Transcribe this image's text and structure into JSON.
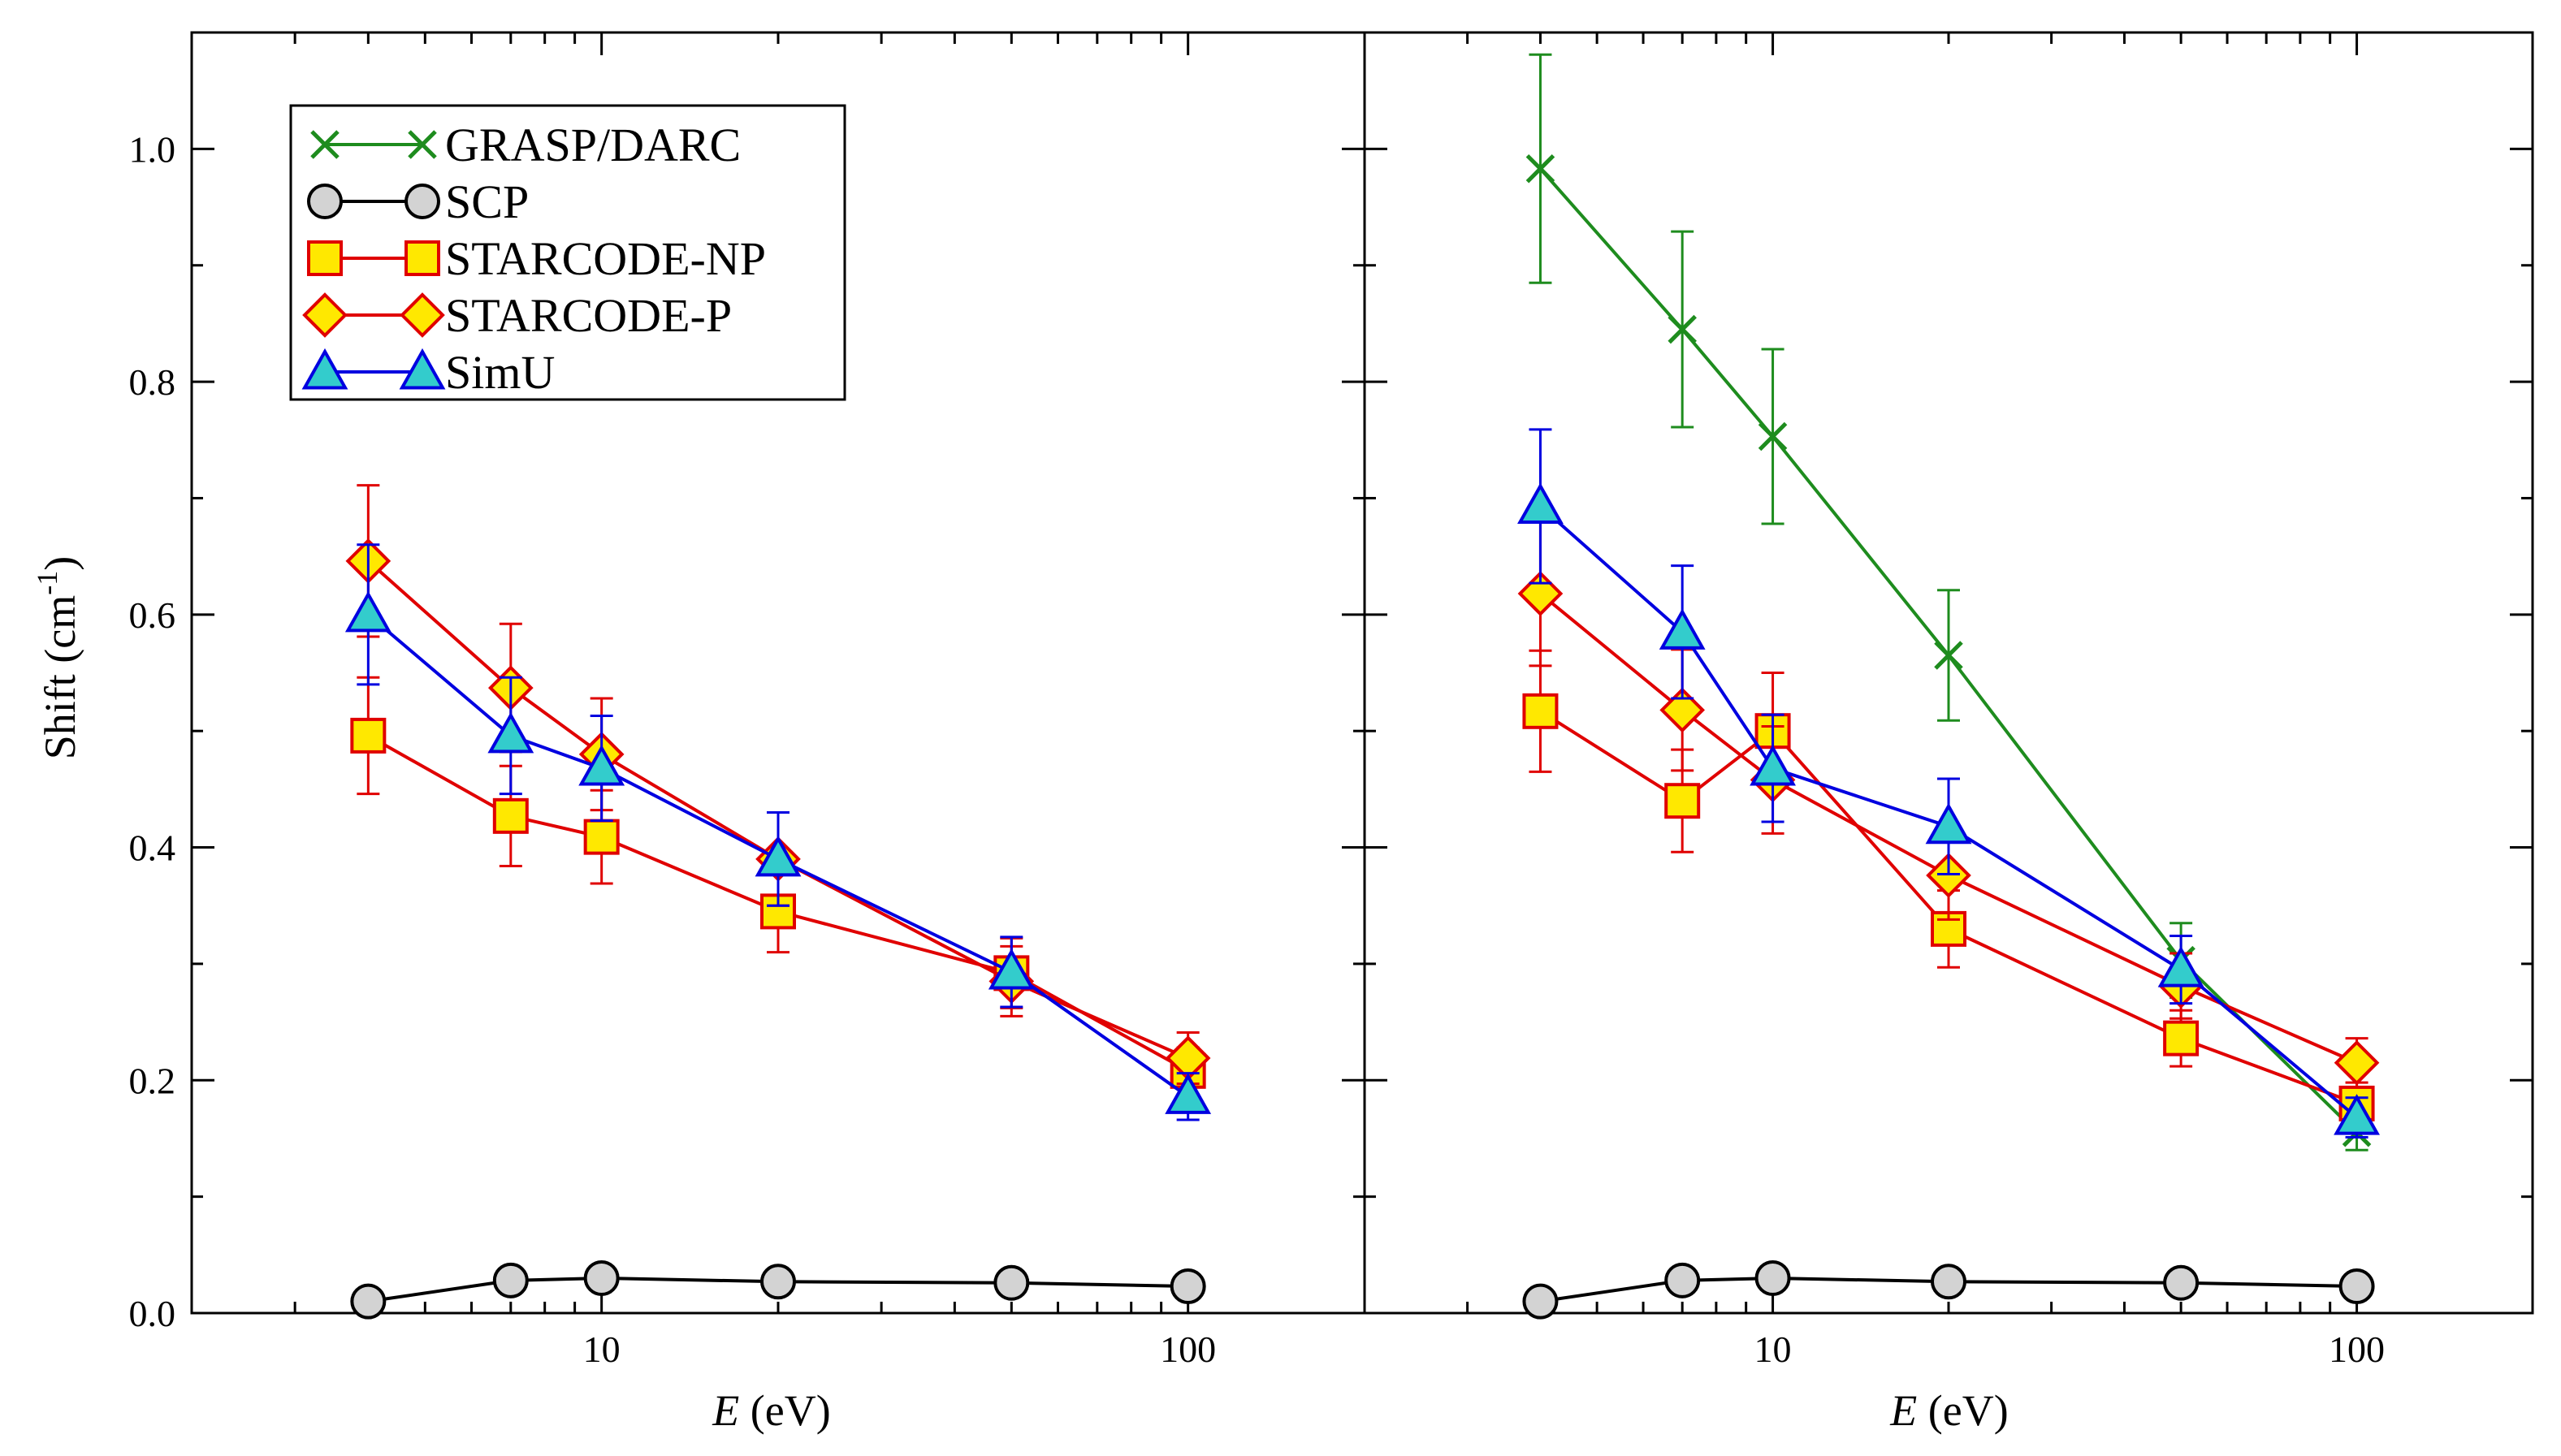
{
  "colors": {
    "grasp": "#1e8c1e",
    "scp": "#000000",
    "np": "#e00000",
    "p": "#e00000",
    "simu": "#0000e0",
    "square_fill": "#ffe800",
    "diamond_fill": "#ffe800",
    "triangle_fill": "#33cccc",
    "circle_fill": "#d3d3d3"
  },
  "chart_data": {
    "type": "line",
    "xlabel": "E",
    "xlabel_unit": "(eV)",
    "ylabel_prefix": "Shift (cm",
    "ylabel_sup": "-1",
    "ylabel_suffix": ")",
    "xscale": "log",
    "xlim": [
      2,
      200
    ],
    "ylim": [
      0,
      1.1
    ],
    "y_ticks": [
      "0.0",
      "0.2",
      "0.4",
      "0.6",
      "0.8",
      "1.0"
    ],
    "x_ticks": [
      "10",
      "100"
    ],
    "grid": false,
    "legend_position": "top-left",
    "legend": [
      {
        "name": "GRASP/DARC",
        "marker": "x"
      },
      {
        "name": "SCP",
        "marker": "circle"
      },
      {
        "name": "STARCODE-NP",
        "marker": "square"
      },
      {
        "name": "STARCODE-P",
        "marker": "diamond"
      },
      {
        "name": "SimU",
        "marker": "triangle"
      }
    ],
    "panels": [
      {
        "series": [
          {
            "key": "scp",
            "marker": "circle",
            "x": [
              4,
              7,
              10,
              20,
              50,
              100
            ],
            "y": [
              0.01,
              0.028,
              0.03,
              0.027,
              0.026,
              0.023
            ]
          },
          {
            "key": "np",
            "marker": "square",
            "x": [
              4,
              7,
              10,
              20,
              50,
              100
            ],
            "y": [
              0.496,
              0.427,
              0.409,
              0.345,
              0.292,
              0.208
            ],
            "err": [
              0.05,
              0.043,
              0.04,
              0.035,
              0.03,
              0.02
            ]
          },
          {
            "key": "p",
            "marker": "diamond",
            "x": [
              4,
              7,
              10,
              20,
              50,
              100
            ],
            "y": [
              0.646,
              0.537,
              0.48,
              0.39,
              0.285,
              0.219
            ],
            "err": [
              0.065,
              0.055,
              0.048,
              0.04,
              0.03,
              0.022
            ]
          },
          {
            "key": "simu",
            "marker": "triangle",
            "x": [
              4,
              7,
              10,
              20,
              50,
              100
            ],
            "y": [
              0.6,
              0.496,
              0.468,
              0.39,
              0.293,
              0.186
            ],
            "err": [
              0.06,
              0.05,
              0.045,
              0.04,
              0.03,
              0.02
            ]
          }
        ]
      },
      {
        "series": [
          {
            "key": "grasp",
            "marker": "x",
            "x": [
              4,
              7,
              10,
              20,
              50,
              100
            ],
            "y": [
              0.983,
              0.845,
              0.753,
              0.565,
              0.303,
              0.155
            ],
            "err": [
              0.098,
              0.084,
              0.075,
              0.056,
              0.032,
              0.015
            ]
          },
          {
            "key": "scp",
            "marker": "circle",
            "x": [
              4,
              7,
              10,
              20,
              50,
              100
            ],
            "y": [
              0.01,
              0.028,
              0.03,
              0.027,
              0.026,
              0.023
            ]
          },
          {
            "key": "np",
            "marker": "square",
            "x": [
              4,
              7,
              10,
              20,
              50,
              100
            ],
            "y": [
              0.517,
              0.44,
              0.5,
              0.33,
              0.236,
              0.18
            ],
            "err": [
              0.052,
              0.044,
              0.05,
              0.033,
              0.024,
              0.018
            ]
          },
          {
            "key": "p",
            "marker": "diamond",
            "x": [
              4,
              7,
              10,
              20,
              50,
              100
            ],
            "y": [
              0.618,
              0.518,
              0.458,
              0.376,
              0.281,
              0.215
            ],
            "err": [
              0.062,
              0.052,
              0.046,
              0.038,
              0.028,
              0.021
            ]
          },
          {
            "key": "simu",
            "marker": "triangle",
            "x": [
              4,
              7,
              10,
              20,
              50,
              100
            ],
            "y": [
              0.693,
              0.585,
              0.468,
              0.418,
              0.295,
              0.168
            ],
            "err": [
              0.066,
              0.057,
              0.046,
              0.041,
              0.029,
              0.017
            ]
          }
        ]
      }
    ]
  }
}
